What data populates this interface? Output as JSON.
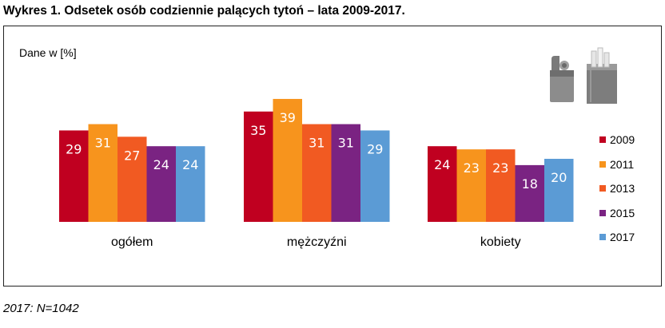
{
  "title": "Wykres 1. Odsetek osób codziennie palących tytoń – lata 2009-2017.",
  "unit_label": "Dane w [%]",
  "footnote": "2017: N=1042",
  "pictogram": "lighter-and-cigarette-pack-icon",
  "chart_data": {
    "type": "bar",
    "categories": [
      "ogółem",
      "mężczyźni",
      "kobiety"
    ],
    "series": [
      {
        "name": "2009",
        "color": "#c00020",
        "values": [
          29,
          35,
          24
        ]
      },
      {
        "name": "2011",
        "color": "#f7941d",
        "values": [
          31,
          39,
          23
        ]
      },
      {
        "name": "2013",
        "color": "#f15a22",
        "values": [
          27,
          31,
          23
        ]
      },
      {
        "name": "2015",
        "color": "#7a2382",
        "values": [
          24,
          31,
          18
        ]
      },
      {
        "name": "2017",
        "color": "#5b9bd5",
        "values": [
          24,
          29,
          20
        ]
      }
    ],
    "ylim": [
      0,
      41
    ],
    "grid": false,
    "legend": "right"
  }
}
